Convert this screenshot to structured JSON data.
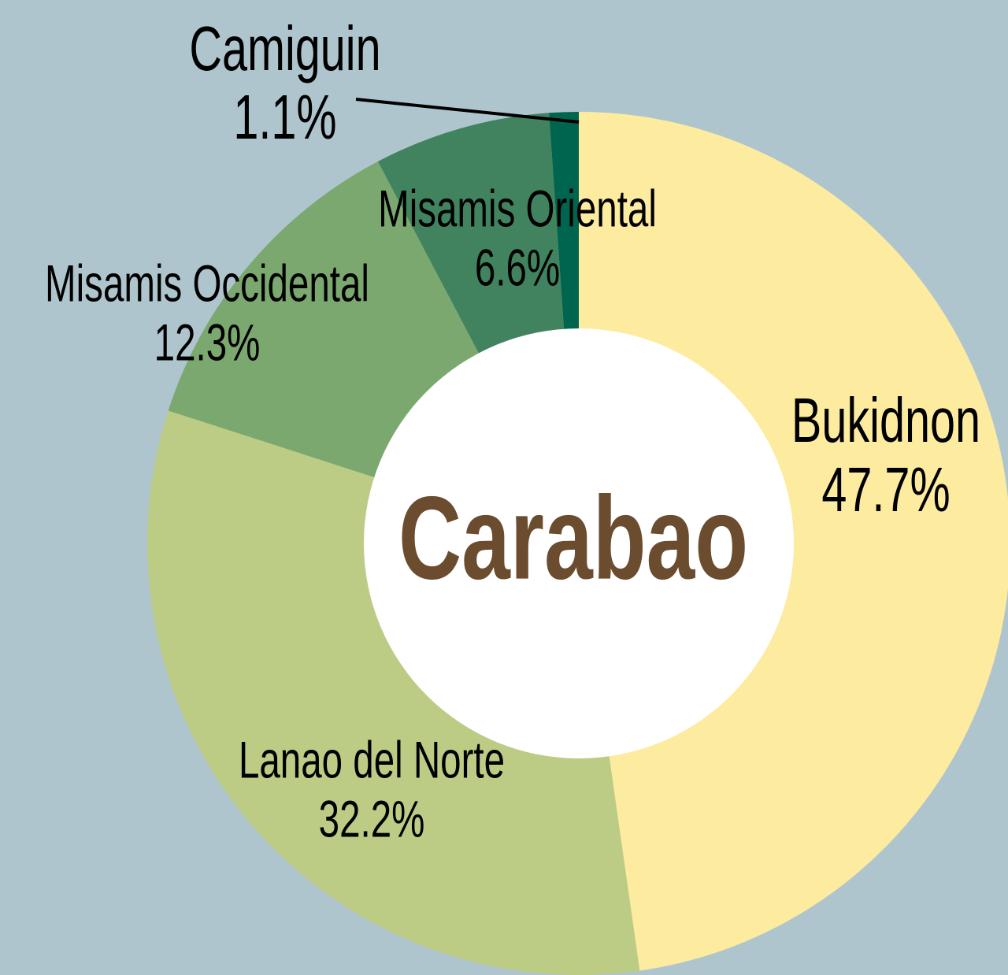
{
  "chart_data": {
    "type": "donut",
    "center_label": "Carabao",
    "categories": [
      "Bukidnon",
      "Lanao del Norte",
      "Misamis Occidental",
      "Misamis Oriental",
      "Camiguin"
    ],
    "values": [
      47.7,
      32.2,
      12.3,
      6.6,
      1.1
    ],
    "value_labels": [
      "47.7%",
      "32.2%",
      "12.3%",
      "6.6%",
      "1.1%"
    ],
    "colors": [
      "#fdeba0",
      "#bccc85",
      "#7ba86f",
      "#42835f",
      "#00654f"
    ]
  }
}
